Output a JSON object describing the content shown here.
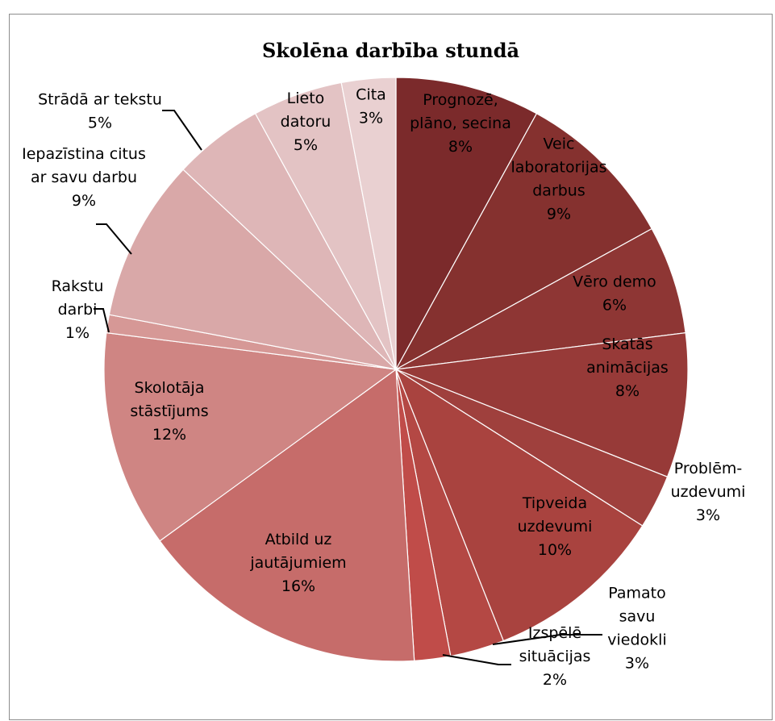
{
  "chart_data": {
    "type": "pie",
    "title": "Skolēna darbība stundā",
    "slices": [
      {
        "lines": [
          "Prognozē,",
          "plāno, secina",
          "8%"
        ],
        "value": 8,
        "color": "#7b2a2b"
      },
      {
        "lines": [
          "Veic",
          "laboratorijas",
          "darbus",
          "9%"
        ],
        "value": 9,
        "color": "#85312f"
      },
      {
        "lines": [
          "Vēro demo",
          "6%"
        ],
        "value": 6,
        "color": "#8e3634"
      },
      {
        "lines": [
          "Skatās",
          "animācijas",
          "8%"
        ],
        "value": 8,
        "color": "#973a38"
      },
      {
        "lines": [
          "Problēm-",
          "uzdevumi",
          "3%"
        ],
        "value": 3,
        "color": "#9f403d"
      },
      {
        "lines": [
          "Tipveida",
          "uzdevumi",
          "10%"
        ],
        "value": 10,
        "color": "#a9433f"
      },
      {
        "lines": [
          "Pamato",
          "savu",
          "viedokli",
          "3%"
        ],
        "value": 3,
        "color": "#b44844"
      },
      {
        "lines": [
          "Izspēlē",
          "situācijas",
          "2%"
        ],
        "value": 2,
        "color": "#c04c49"
      },
      {
        "lines": [
          "Atbild uz",
          "jautājumiem",
          "16%"
        ],
        "value": 16,
        "color": "#c66c6a"
      },
      {
        "lines": [
          "Skolotāja",
          "stāstījums",
          "12%"
        ],
        "value": 12,
        "color": "#cf8583"
      },
      {
        "lines": [
          "Rakstu",
          "darbi",
          "1%"
        ],
        "value": 1,
        "color": "#d69896"
      },
      {
        "lines": [
          "Iepazīstina citus",
          "ar savu darbu",
          "9%"
        ],
        "value": 9,
        "color": "#d9a8a8"
      },
      {
        "lines": [
          "Strādā ar tekstu",
          "5%"
        ],
        "value": 5,
        "color": "#deb6b7"
      },
      {
        "lines": [
          "Lieto",
          "datoru",
          "5%"
        ],
        "value": 5,
        "color": "#e3c3c4"
      },
      {
        "lines": [
          "Cita",
          "3%"
        ],
        "value": 3,
        "color": "#e9d0d1"
      }
    ]
  }
}
